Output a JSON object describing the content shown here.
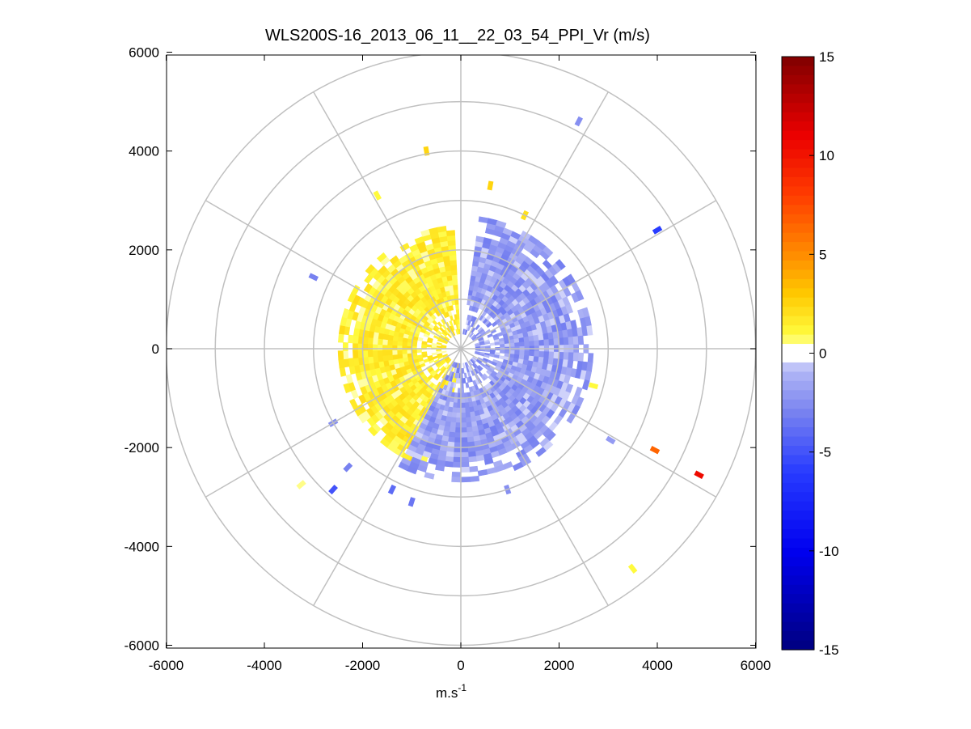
{
  "chart_data": {
    "type": "polar_ppi_scatter",
    "title": "WLS200S-16_2013_06_11__22_03_54_PPI_Vr (m/s)",
    "xlabel": "m.s",
    "xlabel_superscript": "-1",
    "ylabel": "",
    "xlim": [
      -6000,
      6000
    ],
    "ylim": [
      -6000,
      6000
    ],
    "xticks": [
      -6000,
      -4000,
      -2000,
      0,
      2000,
      4000,
      6000
    ],
    "yticks": [
      -6000,
      -4000,
      -2000,
      0,
      2000,
      4000,
      6000
    ],
    "xtick_labels": [
      "-6000",
      "-4000",
      "-2000",
      "0",
      "2000",
      "4000",
      "6000"
    ],
    "ytick_labels": [
      "-6000",
      "-4000",
      "-2000",
      "0",
      "2000",
      "4000",
      "6000"
    ],
    "polar_grid": {
      "ring_radii_m": [
        1000,
        2000,
        3000,
        4000,
        5000,
        6000
      ],
      "spoke_angles_deg": [
        0,
        30,
        60,
        90,
        120,
        150,
        180,
        210,
        240,
        270,
        300,
        330
      ]
    },
    "colorbar": {
      "range": [
        -15,
        15
      ],
      "ticks": [
        15,
        10,
        5,
        0,
        -5,
        -10,
        -15
      ],
      "tick_labels": [
        "15",
        "10",
        "5",
        "0",
        "-5",
        "-10",
        "-15"
      ],
      "levels": 64,
      "center_color": "#ffffff"
    },
    "regions": [
      {
        "name": "near-yellow-sector",
        "az_from_deg": 185,
        "az_to_deg": 355,
        "r_min_m": 300,
        "r_max_m": 2500,
        "vr_mean": 1.5
      },
      {
        "name": "near-blue-sector",
        "az_from_deg": 8,
        "az_to_deg": 205,
        "r_min_m": 300,
        "r_max_m": 2650,
        "vr_mean": -2.0
      }
    ],
    "points": [
      {
        "x": 2400,
        "y": 4600,
        "vr": -2.5
      },
      {
        "x": 4000,
        "y": 2400,
        "vr": -6.0
      },
      {
        "x": -700,
        "y": 4000,
        "vr": 2.5
      },
      {
        "x": 600,
        "y": 3300,
        "vr": 2.5
      },
      {
        "x": -1700,
        "y": 3100,
        "vr": 1.0
      },
      {
        "x": 1300,
        "y": 2700,
        "vr": 2.0
      },
      {
        "x": 3950,
        "y": -2050,
        "vr": 6.5
      },
      {
        "x": 4850,
        "y": -2550,
        "vr": 10.5
      },
      {
        "x": 3500,
        "y": -4450,
        "vr": 1.0
      },
      {
        "x": -3250,
        "y": -2750,
        "vr": 0.5
      },
      {
        "x": -2600,
        "y": -2850,
        "vr": -5.0
      },
      {
        "x": -1400,
        "y": -2850,
        "vr": -4.0
      },
      {
        "x": -1000,
        "y": -3100,
        "vr": -3.5
      },
      {
        "x": 950,
        "y": -2850,
        "vr": -2.5
      },
      {
        "x": 3050,
        "y": -1850,
        "vr": -2.0
      },
      {
        "x": -2300,
        "y": -2400,
        "vr": -3.0
      },
      {
        "x": -2600,
        "y": -1500,
        "vr": -2.5
      },
      {
        "x": -3000,
        "y": 1450,
        "vr": -3.0
      },
      {
        "x": 2700,
        "y": -750,
        "vr": 1.0
      }
    ]
  }
}
